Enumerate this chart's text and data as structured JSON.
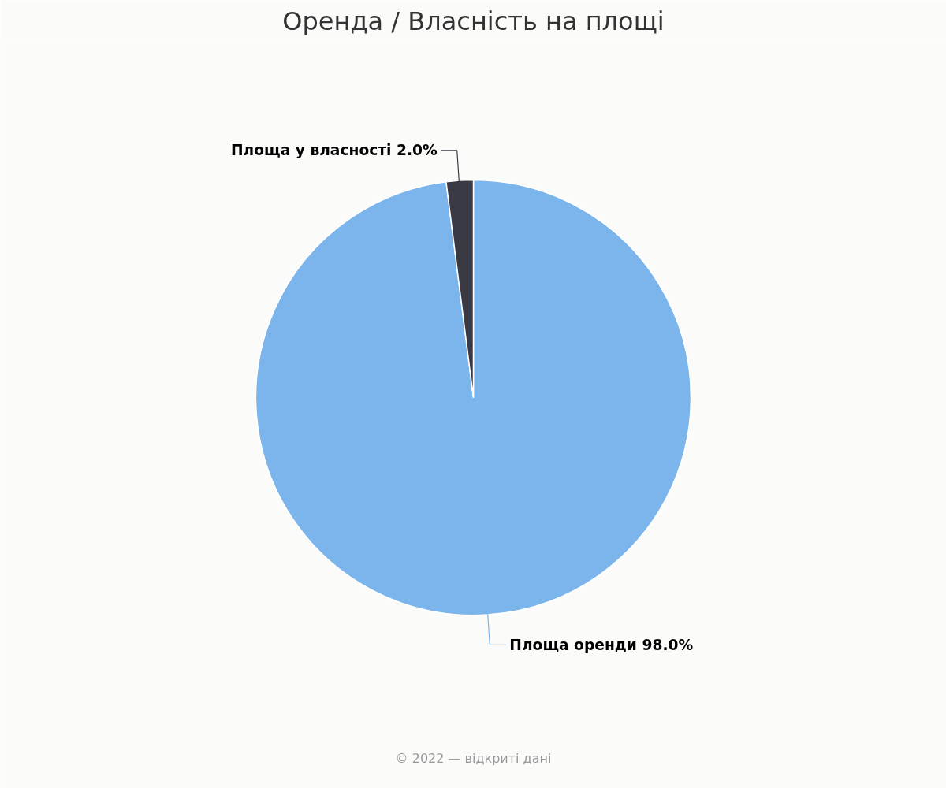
{
  "chart_data": {
    "type": "pie",
    "title": "Оренда / Власність на площі",
    "categories": [
      "Площа оренди",
      "Площа у власності"
    ],
    "values": [
      98.0,
      2.0
    ],
    "colors": [
      "#7cb5ec",
      "#3a3a45"
    ],
    "value_labels": [
      "98.0%",
      "2.0%"
    ],
    "annotations": [
      "© 2022 — відкриті дані"
    ]
  }
}
